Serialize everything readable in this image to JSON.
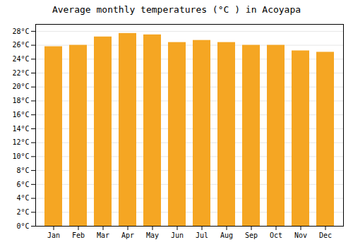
{
  "chart_data": {
    "type": "bar",
    "title": "Average monthly temperatures (°C ) in Acoyapa",
    "categories": [
      "Jan",
      "Feb",
      "Mar",
      "Apr",
      "May",
      "Jun",
      "Jul",
      "Aug",
      "Sep",
      "Oct",
      "Nov",
      "Dec"
    ],
    "values": [
      25.8,
      26.0,
      27.2,
      27.7,
      27.5,
      26.4,
      26.7,
      26.4,
      26.0,
      26.0,
      25.2,
      25.0
    ],
    "color": "#F5A623",
    "ylim": [
      0,
      29
    ],
    "yticks": [
      {
        "value": 0,
        "label": "0°C"
      },
      {
        "value": 2,
        "label": "2°C"
      },
      {
        "value": 4,
        "label": "4°C"
      },
      {
        "value": 6,
        "label": "6°C"
      },
      {
        "value": 8,
        "label": "8°C"
      },
      {
        "value": 10,
        "label": "10°C"
      },
      {
        "value": 12,
        "label": "12°C"
      },
      {
        "value": 14,
        "label": "14°C"
      },
      {
        "value": 16,
        "label": "16°C"
      },
      {
        "value": 18,
        "label": "18°C"
      },
      {
        "value": 20,
        "label": "20°C"
      },
      {
        "value": 22,
        "label": "22°C"
      },
      {
        "value": 24,
        "label": "24°C"
      },
      {
        "value": 26,
        "label": "26°C"
      },
      {
        "value": 28,
        "label": "28°C"
      }
    ],
    "grid": true
  }
}
